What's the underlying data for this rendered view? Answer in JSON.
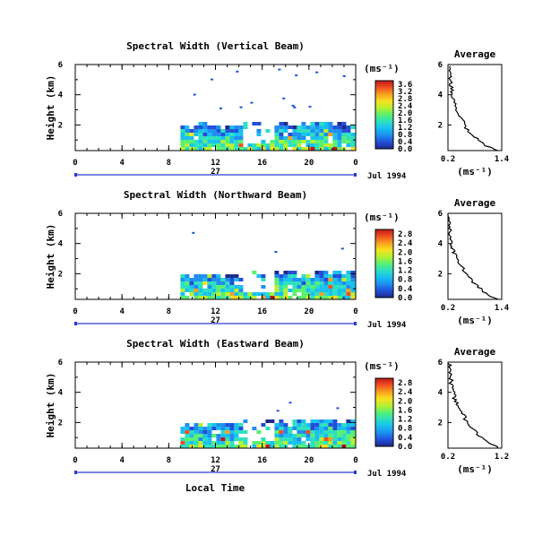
{
  "figure": {
    "xlabel": "Local Time",
    "date_label": "Jul 1994",
    "day_label": "27"
  },
  "chart_data": [
    {
      "type": "heatmap",
      "title": "Spectral Width (Vertical Beam)",
      "ylabel": "Height (km)",
      "xlabel": "Local Time",
      "x_ticks": [
        "0",
        "4",
        "8",
        "12",
        "16",
        "20",
        "0"
      ],
      "y_ticks": [
        "2",
        "4",
        "6"
      ],
      "xlim": [
        0,
        24
      ],
      "ylim": [
        0.3,
        6.0
      ],
      "colorbar": {
        "unit": "(ms⁻¹)",
        "ticks": [
          "0.0",
          "0.4",
          "0.8",
          "1.2",
          "1.6",
          "2.0",
          "2.4",
          "2.8",
          "3.2",
          "3.6"
        ]
      },
      "echo_region": {
        "x_start": 9.0,
        "x_end": 24.0,
        "top_height_start": 2.1,
        "top_height_end": 2.3
      },
      "average_profile": {
        "title": "Average",
        "xlabel": "(ms⁻¹)",
        "x_ticks": [
          "0.2",
          "1.4"
        ],
        "y_ticks": [
          "2",
          "4",
          "6"
        ],
        "xlim": [
          0.2,
          1.4
        ],
        "ylim": [
          0.3,
          6.0
        ],
        "x": [
          1.3,
          1.0,
          0.8,
          0.6,
          0.5,
          0.4,
          0.35,
          0.3,
          0.28,
          0.25,
          0.22,
          0.22
        ],
        "y": [
          0.3,
          0.7,
          1.2,
          1.8,
          2.5,
          3.0,
          3.5,
          4.0,
          4.5,
          5.0,
          5.5,
          6.0
        ]
      }
    },
    {
      "type": "heatmap",
      "title": "Spectral Width (Northward Beam)",
      "ylabel": "Height (km)",
      "xlabel": "Local Time",
      "x_ticks": [
        "0",
        "4",
        "8",
        "12",
        "16",
        "20",
        "0"
      ],
      "y_ticks": [
        "2",
        "4",
        "6"
      ],
      "xlim": [
        0,
        24
      ],
      "ylim": [
        0.3,
        6.0
      ],
      "colorbar": {
        "unit": "(ms⁻¹)",
        "ticks": [
          "0.0",
          "0.4",
          "0.8",
          "1.2",
          "1.6",
          "2.0",
          "2.4",
          "2.8"
        ]
      },
      "echo_region": {
        "x_start": 9.0,
        "x_end": 24.0,
        "top_height_start": 2.0,
        "top_height_end": 2.3
      },
      "average_profile": {
        "title": "Average",
        "xlabel": "(ms⁻¹)",
        "x_ticks": [
          "0.2",
          "1.4"
        ],
        "y_ticks": [
          "2",
          "4",
          "6"
        ],
        "xlim": [
          0.2,
          1.4
        ],
        "ylim": [
          0.3,
          6.0
        ],
        "x": [
          1.3,
          1.05,
          0.85,
          0.65,
          0.5,
          0.4,
          0.32,
          0.28,
          0.26,
          0.24,
          0.22,
          0.22
        ],
        "y": [
          0.3,
          0.7,
          1.2,
          1.8,
          2.5,
          3.0,
          3.5,
          4.0,
          4.5,
          5.0,
          5.5,
          6.0
        ]
      }
    },
    {
      "type": "heatmap",
      "title": "Spectral Width (Eastward Beam)",
      "ylabel": "Height (km)",
      "xlabel": "Local Time",
      "x_ticks": [
        "0",
        "4",
        "8",
        "12",
        "16",
        "20",
        "0"
      ],
      "y_ticks": [
        "2",
        "4",
        "6"
      ],
      "xlim": [
        0,
        24
      ],
      "ylim": [
        0.3,
        6.0
      ],
      "colorbar": {
        "unit": "(ms⁻¹)",
        "ticks": [
          "0.0",
          "0.4",
          "0.8",
          "1.2",
          "1.6",
          "2.0",
          "2.4",
          "2.8"
        ]
      },
      "echo_region": {
        "x_start": 9.0,
        "x_end": 24.0,
        "top_height_start": 2.0,
        "top_height_end": 2.3
      },
      "average_profile": {
        "title": "Average",
        "xlabel": "(ms⁻¹)",
        "x_ticks": [
          "0.2",
          "1.2"
        ],
        "y_ticks": [
          "2",
          "4",
          "6"
        ],
        "xlim": [
          0.2,
          1.2
        ],
        "ylim": [
          0.3,
          6.0
        ],
        "x": [
          1.15,
          0.95,
          0.75,
          0.6,
          0.48,
          0.4,
          0.33,
          0.3,
          0.27,
          0.25,
          0.23,
          0.22
        ],
        "y": [
          0.3,
          0.7,
          1.2,
          1.8,
          2.5,
          3.0,
          3.5,
          4.0,
          4.5,
          5.0,
          5.5,
          6.0
        ]
      }
    }
  ],
  "colors": {
    "colormap": [
      "#1e2a8c",
      "#2050d8",
      "#1f8ef0",
      "#18c0f0",
      "#2de0c0",
      "#5af070",
      "#b8f030",
      "#f8e020",
      "#f8a020",
      "#f05020",
      "#c01818"
    ],
    "axis": "#000000",
    "date_bar": "#2a3ad0"
  }
}
